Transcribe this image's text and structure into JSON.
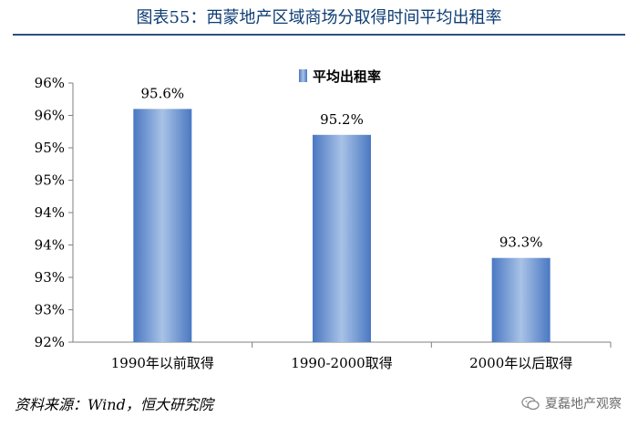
{
  "title": "图表55：西蒙地产区域商场分取得时间平均出租率",
  "source": "资料来源：Wind，恒大研究院",
  "watermark": "夏磊地产观察",
  "colors": {
    "bar": "#4a78c2",
    "bar_light": "#a8c2e6",
    "title": "#0d3c74"
  },
  "chart_data": {
    "type": "bar",
    "categories": [
      "1990年以前取得",
      "1990-2000取得",
      "2000年以后取得"
    ],
    "series": [
      {
        "name": "平均出租率",
        "values": [
          95.6,
          95.2,
          93.3
        ]
      }
    ],
    "data_labels": [
      "95.6%",
      "95.2%",
      "93.3%"
    ],
    "ylim": [
      92,
      96
    ],
    "yticks": [
      92,
      92.5,
      93,
      93.5,
      94,
      94.5,
      95,
      95.5,
      96
    ],
    "ytick_labels": [
      "92%",
      "93%",
      "93%",
      "94%",
      "94%",
      "95%",
      "95%",
      "96%",
      "96%"
    ],
    "legend_position": "top-right",
    "grid": false
  }
}
